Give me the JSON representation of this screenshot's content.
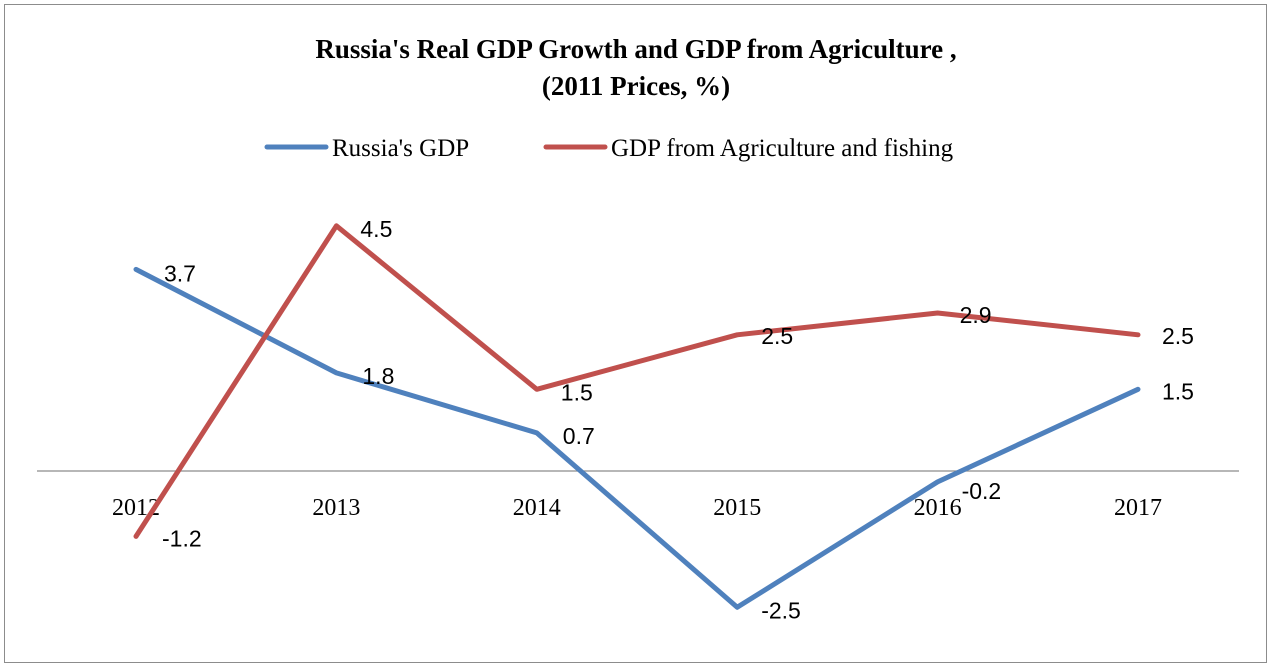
{
  "chart_data": {
    "type": "line",
    "title": "Russia's Real GDP Growth and GDP from Agriculture ,",
    "subtitle": "(2011 Prices, %)",
    "xlabel": "",
    "ylabel": "",
    "categories": [
      "2012",
      "2013",
      "2014",
      "2015",
      "2016",
      "2017"
    ],
    "ylim": [
      -3,
      5
    ],
    "grid": false,
    "legend_position": "top",
    "series": [
      {
        "name": "Russia's GDP",
        "color": "#4f81bd",
        "values": [
          3.7,
          1.8,
          0.7,
          -2.5,
          -0.2,
          1.5
        ],
        "labels": [
          "3.7",
          "1.8",
          "0.7",
          "-2.5",
          "-0.2",
          "1.5"
        ]
      },
      {
        "name": "GDP from Agriculture and fishing",
        "color": "#c0504d",
        "values": [
          -1.2,
          4.5,
          1.5,
          2.5,
          2.9,
          2.5
        ],
        "labels": [
          "-1.2",
          "4.5",
          "1.5",
          "2.5",
          "2.9",
          "2.5"
        ]
      }
    ]
  }
}
